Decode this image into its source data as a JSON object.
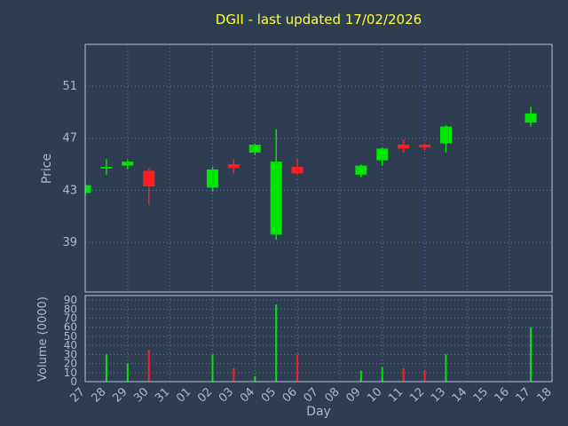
{
  "title": "DGII - last updated 17/02/2026",
  "xlabel": "Day",
  "price_axis_label": "Price",
  "volume_axis_label": "Volume (0000)",
  "colors": {
    "background": "#2f3d52",
    "up": "#00e600",
    "down": "#ff1f1f",
    "grid": "#5b79a8",
    "border": "#b3c3e0",
    "tick_text": "#a9bad6",
    "title_text": "#ffff33"
  },
  "chart_data": [
    {
      "type": "candlestick",
      "name": "price",
      "title": "DGII - last updated 17/02/2026",
      "xlabel": "Day",
      "ylabel": "Price",
      "ylim": [
        35.2,
        54.2
      ],
      "yticks": [
        39,
        43,
        47,
        51
      ],
      "grid": true,
      "categories": [
        "27",
        "28",
        "29",
        "30",
        "31",
        "01",
        "02",
        "03",
        "04",
        "05",
        "06",
        "07",
        "08",
        "09",
        "10",
        "11",
        "12",
        "13",
        "14",
        "15",
        "16",
        "17",
        "18"
      ],
      "series": [
        {
          "day": "27",
          "open": 42.8,
          "high": 43.5,
          "low": 42.6,
          "close": 43.4
        },
        {
          "day": "28",
          "open": 44.7,
          "high": 45.4,
          "low": 44.2,
          "close": 44.8
        },
        {
          "day": "29",
          "open": 44.9,
          "high": 45.35,
          "low": 44.6,
          "close": 45.2
        },
        {
          "day": "30",
          "open": 44.5,
          "high": 44.7,
          "low": 41.9,
          "close": 43.3
        },
        {
          "day": "02",
          "open": 43.2,
          "high": 44.8,
          "low": 42.9,
          "close": 44.6
        },
        {
          "day": "03",
          "open": 45.0,
          "high": 45.4,
          "low": 44.3,
          "close": 44.7
        },
        {
          "day": "04",
          "open": 45.9,
          "high": 46.6,
          "low": 45.7,
          "close": 46.5
        },
        {
          "day": "05",
          "open": 39.6,
          "high": 47.7,
          "low": 39.2,
          "close": 45.2
        },
        {
          "day": "06",
          "open": 44.8,
          "high": 45.4,
          "low": 44.2,
          "close": 44.3
        },
        {
          "day": "09",
          "open": 44.2,
          "high": 45.0,
          "low": 44.0,
          "close": 44.9
        },
        {
          "day": "10",
          "open": 45.3,
          "high": 46.3,
          "low": 44.9,
          "close": 46.2
        },
        {
          "day": "11",
          "open": 46.5,
          "high": 46.9,
          "low": 45.9,
          "close": 46.2
        },
        {
          "day": "12",
          "open": 46.5,
          "high": 46.6,
          "low": 46.1,
          "close": 46.3
        },
        {
          "day": "13",
          "open": 46.6,
          "high": 48.0,
          "low": 45.9,
          "close": 47.9
        },
        {
          "day": "17",
          "open": 48.2,
          "high": 49.4,
          "low": 47.9,
          "close": 48.9
        }
      ]
    },
    {
      "type": "bar",
      "name": "volume",
      "ylabel": "Volume (0000)",
      "ylim": [
        0,
        95
      ],
      "yticks": [
        0,
        10,
        20,
        30,
        40,
        50,
        60,
        70,
        80,
        90
      ],
      "grid": true,
      "bars": [
        {
          "day": "28",
          "value": 30,
          "direction": "up"
        },
        {
          "day": "29",
          "value": 20,
          "direction": "up"
        },
        {
          "day": "30",
          "value": 35,
          "direction": "down"
        },
        {
          "day": "02",
          "value": 30,
          "direction": "up"
        },
        {
          "day": "03",
          "value": 15,
          "direction": "down"
        },
        {
          "day": "04",
          "value": 6,
          "direction": "up"
        },
        {
          "day": "05",
          "value": 85,
          "direction": "up"
        },
        {
          "day": "06",
          "value": 30,
          "direction": "down"
        },
        {
          "day": "09",
          "value": 12,
          "direction": "up"
        },
        {
          "day": "10",
          "value": 16,
          "direction": "up"
        },
        {
          "day": "11",
          "value": 15,
          "direction": "down"
        },
        {
          "day": "12",
          "value": 12,
          "direction": "down"
        },
        {
          "day": "13",
          "value": 30,
          "direction": "up"
        },
        {
          "day": "17",
          "value": 60,
          "direction": "up"
        }
      ]
    }
  ]
}
